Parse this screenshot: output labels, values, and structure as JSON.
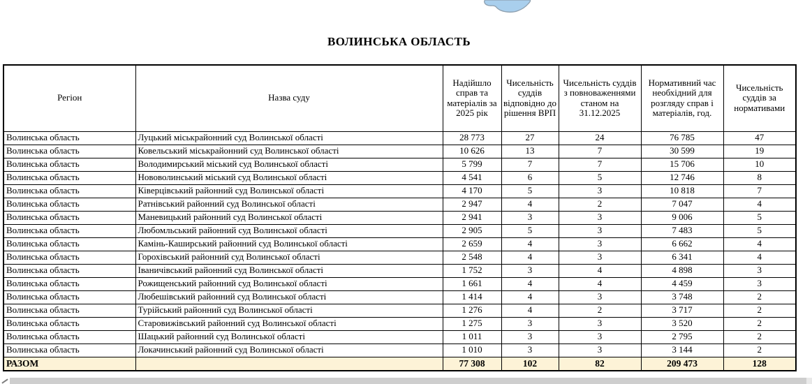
{
  "page": {
    "title": "ВОЛИНСЬКА ОБЛАСТЬ"
  },
  "colors": {
    "total-bg": "#fdf3d7",
    "thumb": "#cecece",
    "track": "#e9e9e9",
    "map-fill": "#a9cfed",
    "map-stroke": "#8d9fae"
  },
  "table": {
    "columns": [
      "Регіон",
      "Назва суду",
      "Надійшло справ та матеріалів за 2025 рік",
      "Чисельність суддів відповідно до рішення ВРП",
      "Чисельність суддів з повноваженнями станом на 31.12.2025",
      "Нормативний час необхідний для розгляду справ і матеріалів, год.",
      "Чисельність суддів за нормативами"
    ],
    "rows": [
      {
        "region": "Волинська область",
        "court": "Луцький міськрайонний суд Волинської області",
        "received": "28 773",
        "judges_by_decision": "27",
        "judges_with_powers": "24",
        "norm_hours": "76 785",
        "judges_by_norms": "47"
      },
      {
        "region": "Волинська область",
        "court": "Ковельський міськрайонний суд Волинської області",
        "received": "10 626",
        "judges_by_decision": "13",
        "judges_with_powers": "7",
        "norm_hours": "30 599",
        "judges_by_norms": "19"
      },
      {
        "region": "Волинська область",
        "court": "Володимирський міський суд Волинської області",
        "received": "5 799",
        "judges_by_decision": "7",
        "judges_with_powers": "7",
        "norm_hours": "15 706",
        "judges_by_norms": "10"
      },
      {
        "region": "Волинська область",
        "court": "Нововолинський міський суд Волинської області",
        "received": "4 541",
        "judges_by_decision": "6",
        "judges_with_powers": "5",
        "norm_hours": "12 746",
        "judges_by_norms": "8"
      },
      {
        "region": "Волинська область",
        "court": "Ківерцівський районний суд Волинської області",
        "received": "4 170",
        "judges_by_decision": "5",
        "judges_with_powers": "3",
        "norm_hours": "10 818",
        "judges_by_norms": "7"
      },
      {
        "region": "Волинська область",
        "court": "Ратнівський районний суд Волинської області",
        "received": "2 947",
        "judges_by_decision": "4",
        "judges_with_powers": "2",
        "norm_hours": "7 047",
        "judges_by_norms": "4"
      },
      {
        "region": "Волинська область",
        "court": "Маневицький районний суд Волинської області",
        "received": "2 941",
        "judges_by_decision": "3",
        "judges_with_powers": "3",
        "norm_hours": "9 006",
        "judges_by_norms": "5"
      },
      {
        "region": "Волинська область",
        "court": "Любомльський районний суд Волинської області",
        "received": "2 905",
        "judges_by_decision": "5",
        "judges_with_powers": "3",
        "norm_hours": "7 483",
        "judges_by_norms": "5"
      },
      {
        "region": "Волинська область",
        "court": "Камінь-Каширський районний суд Волинської області",
        "received": "2 659",
        "judges_by_decision": "4",
        "judges_with_powers": "3",
        "norm_hours": "6 662",
        "judges_by_norms": "4"
      },
      {
        "region": "Волинська область",
        "court": "Горохівський районний суд Волинської області",
        "received": "2 548",
        "judges_by_decision": "4",
        "judges_with_powers": "3",
        "norm_hours": "6 341",
        "judges_by_norms": "4"
      },
      {
        "region": "Волинська область",
        "court": "Іваничівський районний суд Волинської області",
        "received": "1 752",
        "judges_by_decision": "3",
        "judges_with_powers": "4",
        "norm_hours": "4 898",
        "judges_by_norms": "3"
      },
      {
        "region": "Волинська область",
        "court": "Рожищенський районний суд Волинської області",
        "received": "1 661",
        "judges_by_decision": "4",
        "judges_with_powers": "4",
        "norm_hours": "4 459",
        "judges_by_norms": "3"
      },
      {
        "region": "Волинська область",
        "court": "Любешівський районний суд Волинської області",
        "received": "1 414",
        "judges_by_decision": "4",
        "judges_with_powers": "3",
        "norm_hours": "3 748",
        "judges_by_norms": "2"
      },
      {
        "region": "Волинська область",
        "court": "Турійський районний суд Волинської області",
        "received": "1 276",
        "judges_by_decision": "4",
        "judges_with_powers": "2",
        "norm_hours": "3 717",
        "judges_by_norms": "2"
      },
      {
        "region": "Волинська область",
        "court": "Старовижівський районний суд Волинської області",
        "received": "1 275",
        "judges_by_decision": "3",
        "judges_with_powers": "3",
        "norm_hours": "3 520",
        "judges_by_norms": "2"
      },
      {
        "region": "Волинська область",
        "court": "Шацький районний суд Волинської області",
        "received": "1 011",
        "judges_by_decision": "3",
        "judges_with_powers": "3",
        "norm_hours": "2 795",
        "judges_by_norms": "2"
      },
      {
        "region": "Волинська область",
        "court": "Локачинський районний суд Волинської області",
        "received": "1 010",
        "judges_by_decision": "3",
        "judges_with_powers": "3",
        "norm_hours": "3 144",
        "judges_by_norms": "2"
      }
    ],
    "total": {
      "label": "РАЗОМ",
      "received": "77 308",
      "judges_by_decision": "102",
      "judges_with_powers": "82",
      "norm_hours": "209 473",
      "judges_by_norms": "128"
    }
  }
}
